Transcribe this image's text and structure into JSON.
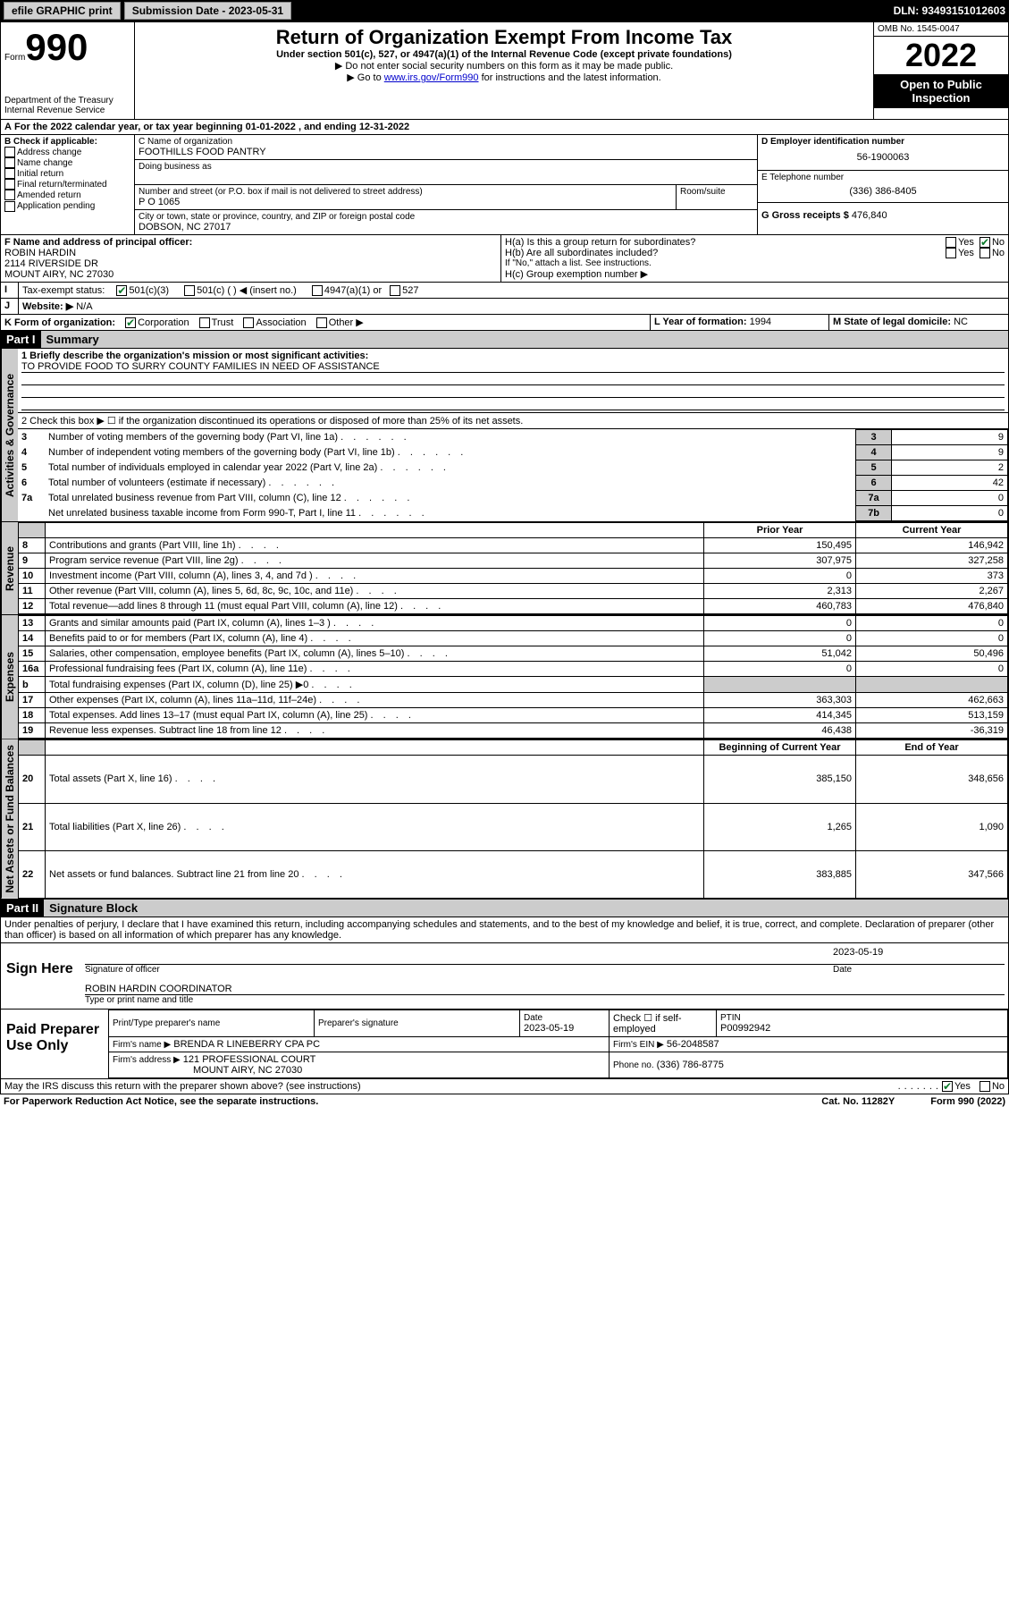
{
  "topbar": {
    "efile": "efile GRAPHIC print",
    "sub_label": "Submission Date - 2023-05-31",
    "dln": "DLN: 93493151012603"
  },
  "header": {
    "form_small": "Form",
    "form_num": "990",
    "dept": "Department of the Treasury",
    "irs": "Internal Revenue Service",
    "title": "Return of Organization Exempt From Income Tax",
    "sub1": "Under section 501(c), 527, or 4947(a)(1) of the Internal Revenue Code (except private foundations)",
    "sub2": "▶ Do not enter social security numbers on this form as it may be made public.",
    "sub3_pre": "▶ Go to ",
    "sub3_link": "www.irs.gov/Form990",
    "sub3_post": " for instructions and the latest information.",
    "omb": "OMB No. 1545-0047",
    "year": "2022",
    "open": "Open to Public Inspection"
  },
  "lineA": {
    "text_pre": "For the 2022 calendar year, or tax year beginning ",
    "begin": "01-01-2022",
    "mid": " , and ending ",
    "end": "12-31-2022"
  },
  "boxB": {
    "label": "B Check if applicable:",
    "items": [
      "Address change",
      "Name change",
      "Initial return",
      "Final return/terminated",
      "Amended return",
      "Application pending"
    ]
  },
  "boxC": {
    "label": "C Name of organization",
    "name": "FOOTHILLS FOOD PANTRY",
    "dba_label": "Doing business as",
    "addr_label": "Number and street (or P.O. box if mail is not delivered to street address)",
    "room_label": "Room/suite",
    "addr": "P O 1065",
    "city_label": "City or town, state or province, country, and ZIP or foreign postal code",
    "city": "DOBSON, NC  27017"
  },
  "boxD": {
    "label": "D Employer identification number",
    "val": "56-1900063"
  },
  "boxE": {
    "label": "E Telephone number",
    "val": "(336) 386-8405"
  },
  "boxG": {
    "label": "G Gross receipts $",
    "val": "476,840"
  },
  "boxF": {
    "label": "F Name and address of principal officer:",
    "name": "ROBIN HARDIN",
    "addr1": "2114 RIVERSIDE DR",
    "addr2": "MOUNT AIRY, NC  27030"
  },
  "boxH": {
    "a": "H(a)  Is this a group return for subordinates?",
    "b": "H(b)  Are all subordinates included?",
    "note": "If \"No,\" attach a list. See instructions.",
    "c": "H(c)  Group exemption number ▶",
    "yes": "Yes",
    "no": "No"
  },
  "boxI": {
    "label": "Tax-exempt status:",
    "c3": "501(c)(3)",
    "c": "501(c) (   ) ◀ (insert no.)",
    "a1": "4947(a)(1) or",
    "s527": "527"
  },
  "boxJ": {
    "label": "Website: ▶",
    "val": "N/A"
  },
  "boxK": {
    "label": "K Form of organization:",
    "corp": "Corporation",
    "trust": "Trust",
    "assoc": "Association",
    "other": "Other ▶"
  },
  "boxL": {
    "label": "L Year of formation:",
    "val": "1994"
  },
  "boxM": {
    "label": "M State of legal domicile:",
    "val": "NC"
  },
  "part1": {
    "hdr": "Part I",
    "title": "Summary",
    "line1_label": "1  Briefly describe the organization's mission or most significant activities:",
    "line1_val": "TO PROVIDE FOOD TO SURRY COUNTY FAMILIES IN NEED OF ASSISTANCE",
    "line2": "2  Check this box ▶ ☐  if the organization discontinued its operations or disposed of more than 25% of its net assets.",
    "tab_activities": "Activities & Governance",
    "tab_revenue": "Revenue",
    "tab_expenses": "Expenses",
    "tab_net": "Net Assets or Fund Balances",
    "col_prior": "Prior Year",
    "col_current": "Current Year",
    "col_begin": "Beginning of Current Year",
    "col_end": "End of Year",
    "gov_rows": [
      {
        "n": "3",
        "t": "Number of voting members of the governing body (Part VI, line 1a)",
        "box": "3",
        "v": "9"
      },
      {
        "n": "4",
        "t": "Number of independent voting members of the governing body (Part VI, line 1b)",
        "box": "4",
        "v": "9"
      },
      {
        "n": "5",
        "t": "Total number of individuals employed in calendar year 2022 (Part V, line 2a)",
        "box": "5",
        "v": "2"
      },
      {
        "n": "6",
        "t": "Total number of volunteers (estimate if necessary)",
        "box": "6",
        "v": "42"
      },
      {
        "n": "7a",
        "t": "Total unrelated business revenue from Part VIII, column (C), line 12",
        "box": "7a",
        "v": "0"
      },
      {
        "n": "",
        "t": "Net unrelated business taxable income from Form 990-T, Part I, line 11",
        "box": "7b",
        "v": "0"
      }
    ],
    "rev_rows": [
      {
        "n": "8",
        "t": "Contributions and grants (Part VIII, line 1h)",
        "p": "150,495",
        "c": "146,942"
      },
      {
        "n": "9",
        "t": "Program service revenue (Part VIII, line 2g)",
        "p": "307,975",
        "c": "327,258"
      },
      {
        "n": "10",
        "t": "Investment income (Part VIII, column (A), lines 3, 4, and 7d )",
        "p": "0",
        "c": "373"
      },
      {
        "n": "11",
        "t": "Other revenue (Part VIII, column (A), lines 5, 6d, 8c, 9c, 10c, and 11e)",
        "p": "2,313",
        "c": "2,267"
      },
      {
        "n": "12",
        "t": "Total revenue—add lines 8 through 11 (must equal Part VIII, column (A), line 12)",
        "p": "460,783",
        "c": "476,840"
      }
    ],
    "exp_rows": [
      {
        "n": "13",
        "t": "Grants and similar amounts paid (Part IX, column (A), lines 1–3 )",
        "p": "0",
        "c": "0"
      },
      {
        "n": "14",
        "t": "Benefits paid to or for members (Part IX, column (A), line 4)",
        "p": "0",
        "c": "0"
      },
      {
        "n": "15",
        "t": "Salaries, other compensation, employee benefits (Part IX, column (A), lines 5–10)",
        "p": "51,042",
        "c": "50,496"
      },
      {
        "n": "16a",
        "t": "Professional fundraising fees (Part IX, column (A), line 11e)",
        "p": "0",
        "c": "0"
      },
      {
        "n": "b",
        "t": "Total fundraising expenses (Part IX, column (D), line 25) ▶0",
        "p": "",
        "c": ""
      },
      {
        "n": "17",
        "t": "Other expenses (Part IX, column (A), lines 11a–11d, 11f–24e)",
        "p": "363,303",
        "c": "462,663"
      },
      {
        "n": "18",
        "t": "Total expenses. Add lines 13–17 (must equal Part IX, column (A), line 25)",
        "p": "414,345",
        "c": "513,159"
      },
      {
        "n": "19",
        "t": "Revenue less expenses. Subtract line 18 from line 12",
        "p": "46,438",
        "c": "-36,319"
      }
    ],
    "net_rows": [
      {
        "n": "20",
        "t": "Total assets (Part X, line 16)",
        "p": "385,150",
        "c": "348,656"
      },
      {
        "n": "21",
        "t": "Total liabilities (Part X, line 26)",
        "p": "1,265",
        "c": "1,090"
      },
      {
        "n": "22",
        "t": "Net assets or fund balances. Subtract line 21 from line 20",
        "p": "383,885",
        "c": "347,566"
      }
    ]
  },
  "part2": {
    "hdr": "Part II",
    "title": "Signature Block",
    "decl": "Under penalties of perjury, I declare that I have examined this return, including accompanying schedules and statements, and to the best of my knowledge and belief, it is true, correct, and complete. Declaration of preparer (other than officer) is based on all information of which preparer has any knowledge.",
    "sign_here": "Sign Here",
    "sig_officer": "Signature of officer",
    "sig_date": "2023-05-19",
    "date_label": "Date",
    "sig_name": "ROBIN HARDIN  COORDINATOR",
    "sig_name_label": "Type or print name and title",
    "paid": "Paid Preparer Use Only",
    "pp_name_label": "Print/Type preparer's name",
    "pp_sig_label": "Preparer's signature",
    "pp_date_label": "Date",
    "pp_date": "2023-05-19",
    "pp_check": "Check ☐ if self-employed",
    "ptin_label": "PTIN",
    "ptin": "P00992942",
    "firm_name_label": "Firm's name    ▶",
    "firm_name": "BRENDA R LINEBERRY CPA PC",
    "firm_ein_label": "Firm's EIN ▶",
    "firm_ein": "56-2048587",
    "firm_addr_label": "Firm's address ▶",
    "firm_addr1": "121 PROFESSIONAL COURT",
    "firm_addr2": "MOUNT AIRY, NC  27030",
    "phone_label": "Phone no.",
    "phone": "(336) 786-8775",
    "discuss": "May the IRS discuss this return with the preparer shown above? (see instructions)",
    "yes": "Yes",
    "no": "No"
  },
  "footer": {
    "left": "For Paperwork Reduction Act Notice, see the separate instructions.",
    "mid": "Cat. No. 11282Y",
    "right": "Form 990 (2022)"
  }
}
